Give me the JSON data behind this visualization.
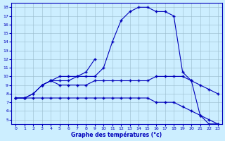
{
  "xlabel": "Graphe des températures (°c)",
  "bg_color": "#cceeff",
  "line_color": "#0000bb",
  "grid_color": "#99bbcc",
  "xlim": [
    -0.5,
    23.5
  ],
  "ylim": [
    4.5,
    18.5
  ],
  "xticks": [
    0,
    1,
    2,
    3,
    4,
    5,
    6,
    7,
    8,
    9,
    10,
    11,
    12,
    13,
    14,
    15,
    16,
    17,
    18,
    19,
    20,
    21,
    22,
    23
  ],
  "yticks": [
    5,
    6,
    7,
    8,
    9,
    10,
    11,
    12,
    13,
    14,
    15,
    16,
    17,
    18
  ],
  "curve_main_x": [
    0,
    1,
    2,
    3,
    4,
    5,
    6,
    7,
    8,
    9,
    10,
    11,
    12,
    13,
    14,
    15,
    16,
    17,
    18,
    19,
    20,
    21,
    22,
    23
  ],
  "curve_main_y": [
    7.5,
    7.5,
    8.0,
    9.0,
    9.5,
    9.5,
    9.5,
    10.0,
    10.0,
    10.0,
    11.0,
    14.0,
    16.5,
    17.5,
    18.0,
    18.0,
    17.5,
    17.5,
    17.0,
    10.5,
    9.5,
    5.5,
    4.5,
    4.5
  ],
  "curve_flat_x": [
    0,
    1,
    2,
    3,
    4,
    5,
    6,
    7,
    8,
    9,
    10,
    11,
    12,
    13,
    14,
    15,
    16,
    17,
    18,
    19,
    20,
    21,
    22,
    23
  ],
  "curve_flat_y": [
    7.5,
    7.5,
    7.5,
    7.5,
    7.5,
    7.5,
    7.5,
    7.5,
    7.5,
    7.5,
    7.5,
    7.5,
    7.5,
    7.5,
    7.5,
    7.5,
    7.0,
    7.0,
    7.0,
    6.5,
    6.0,
    5.5,
    5.0,
    4.5
  ],
  "curve_mid_x": [
    0,
    1,
    2,
    3,
    4,
    5,
    6,
    7,
    8,
    9,
    10,
    11,
    12,
    13,
    14,
    15,
    16,
    17,
    18,
    19,
    20,
    21,
    22,
    23
  ],
  "curve_mid_y": [
    7.5,
    7.5,
    8.0,
    9.0,
    9.5,
    9.0,
    9.0,
    9.0,
    9.0,
    9.5,
    9.5,
    9.5,
    9.5,
    9.5,
    9.5,
    9.5,
    10.0,
    10.0,
    10.0,
    10.0,
    9.5,
    9.0,
    8.5,
    8.0
  ],
  "curve_spike_x": [
    3,
    4,
    5,
    6,
    7,
    8,
    9
  ],
  "curve_spike_y": [
    9.0,
    9.5,
    10.0,
    10.0,
    10.0,
    10.5,
    12.0
  ],
  "marker": "+"
}
